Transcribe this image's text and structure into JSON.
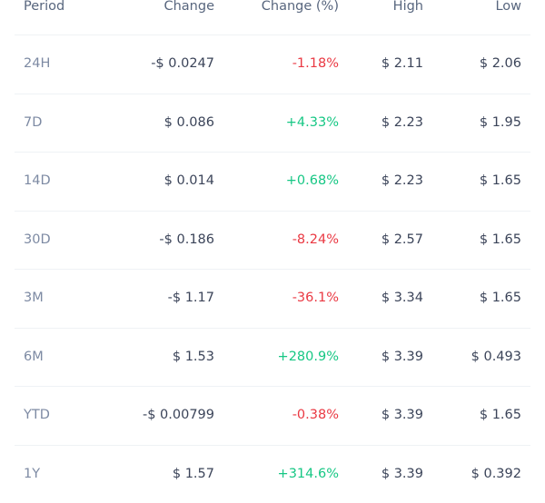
{
  "table": {
    "headers": [
      "Period",
      "Change",
      "Change (%)",
      "High",
      "Low"
    ],
    "rows": [
      {
        "period": "24H",
        "change": "-$ 0.0247",
        "change_pct": "-1.18%",
        "high": "$ 2.11",
        "low": "$ 2.06",
        "direction": "neg"
      },
      {
        "period": "7D",
        "change": "$ 0.086",
        "change_pct": "+4.33%",
        "high": "$ 2.23",
        "low": "$ 1.95",
        "direction": "pos"
      },
      {
        "period": "14D",
        "change": "$ 0.014",
        "change_pct": "+0.68%",
        "high": "$ 2.23",
        "low": "$ 1.65",
        "direction": "pos"
      },
      {
        "period": "30D",
        "change": "-$ 0.186",
        "change_pct": "-8.24%",
        "high": "$ 2.57",
        "low": "$ 1.65",
        "direction": "neg"
      },
      {
        "period": "3M",
        "change": "-$ 1.17",
        "change_pct": "-36.1%",
        "high": "$ 3.34",
        "low": "$ 1.65",
        "direction": "neg"
      },
      {
        "period": "6M",
        "change": "$ 1.53",
        "change_pct": "+280.9%",
        "high": "$ 3.39",
        "low": "$ 0.493",
        "direction": "pos"
      },
      {
        "period": "YTD",
        "change": "-$ 0.00799",
        "change_pct": "-0.38%",
        "high": "$ 3.39",
        "low": "$ 1.65",
        "direction": "neg"
      },
      {
        "period": "1Y",
        "change": "$ 1.57",
        "change_pct": "+314.6%",
        "high": "$ 3.39",
        "low": "$ 0.392",
        "direction": "pos"
      }
    ]
  },
  "colors": {
    "negative": "#ea3943",
    "positive": "#16c784",
    "text": "#3b4459",
    "muted": "#7d8aa3",
    "divider": "#eff2f5"
  }
}
